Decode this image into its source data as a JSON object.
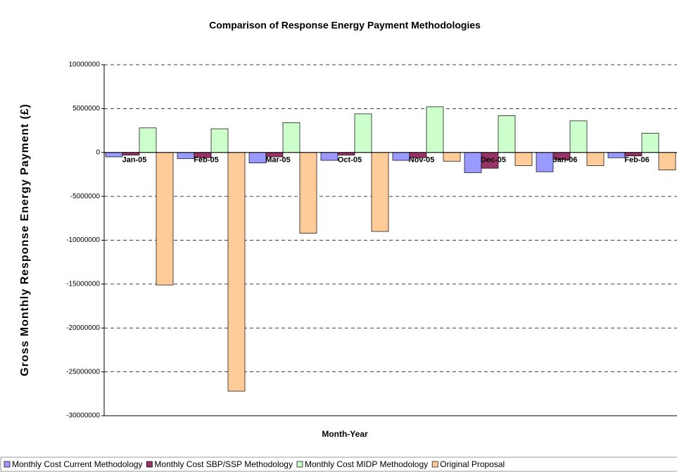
{
  "chart_data": {
    "type": "bar",
    "title": "Comparison of Response Energy Payment Methodologies",
    "x_label": "Month-Year",
    "y_label": "Gross Monthly Response Energy Payment (£)",
    "categories": [
      "Jan-05",
      "Feb-05",
      "Mar-05",
      "Oct-05",
      "Nov-05",
      "Dec-05",
      "Jan-06",
      "Feb-06"
    ],
    "series": [
      {
        "name": "Monthly Cost Current Methodology",
        "color": "#9999ff",
        "values": [
          -500000,
          -700000,
          -1200000,
          -900000,
          -900000,
          -2300000,
          -2200000,
          -600000
        ]
      },
      {
        "name": "Monthly Cost SBP/SSP Methodology",
        "color": "#993366",
        "values": [
          -300000,
          -600000,
          -500000,
          -300000,
          -600000,
          -1800000,
          -800000,
          -400000
        ]
      },
      {
        "name": "Monthly Cost MIDP Methodology",
        "color": "#ccffcc",
        "values": [
          2800000,
          2700000,
          3400000,
          4400000,
          5200000,
          4200000,
          3600000,
          2200000
        ]
      },
      {
        "name": "Original Proposal",
        "color": "#ffcc99",
        "values": [
          -15100000,
          -27200000,
          -9200000,
          -9000000,
          -1000000,
          -1500000,
          -1500000,
          -2000000
        ]
      }
    ],
    "ylim": [
      -30000000,
      10000000
    ],
    "yticks": [
      10000000,
      5000000,
      0,
      -5000000,
      -10000000,
      -15000000,
      -20000000,
      -25000000,
      -30000000
    ],
    "grid": true
  }
}
